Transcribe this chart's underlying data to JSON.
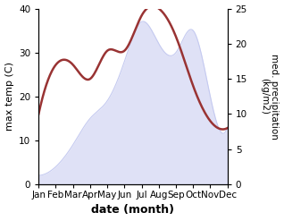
{
  "months": [
    "Jan",
    "Feb",
    "Mar",
    "Apr",
    "May",
    "Jun",
    "Jul",
    "Aug",
    "Sep",
    "Oct",
    "Nov",
    "Dec"
  ],
  "month_indices": [
    0,
    1,
    2,
    3,
    4,
    5,
    6,
    7,
    8,
    9,
    10,
    11
  ],
  "temperature": [
    2,
    4,
    9,
    15,
    19,
    28,
    37,
    32,
    30,
    35,
    20,
    13
  ],
  "precipitation": [
    10,
    17,
    17,
    15,
    19,
    19,
    24,
    25,
    21,
    14,
    9,
    8
  ],
  "temp_fill_color": "#c5caf0",
  "temp_fill_alpha": 0.55,
  "precip_color": "#993333",
  "precip_linewidth": 1.8,
  "ylim_left": [
    0,
    40
  ],
  "ylim_right": [
    0,
    25
  ],
  "yticks_left": [
    0,
    10,
    20,
    30,
    40
  ],
  "yticks_right": [
    0,
    5,
    10,
    15,
    20,
    25
  ],
  "xlabel": "date (month)",
  "ylabel_left": "max temp (C)",
  "ylabel_right": "med. precipitation\n(kg/m2)",
  "xlabel_fontsize": 9,
  "ylabel_fontsize": 8,
  "ylabel_right_fontsize": 7.5,
  "tick_fontsize": 7.5,
  "background_color": "#ffffff"
}
